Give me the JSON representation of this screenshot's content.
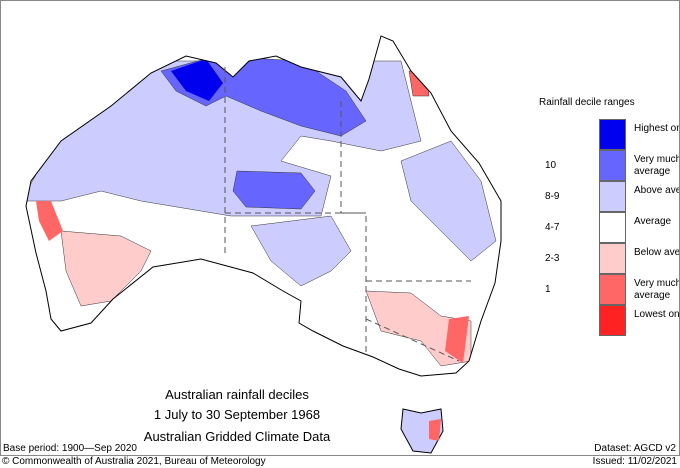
{
  "title_lines": [
    "Australian rainfall deciles",
    "1 July to 30 September 1968",
    "Australian Gridded Climate Data"
  ],
  "base_period": "Base period: 1900—Sep 2020",
  "dataset": "Dataset: AGCD v2",
  "copyright": "© Commonwealth of Australia 2021, Bureau of Meteorology",
  "issued": "Issued: 11/02/2021",
  "legend": {
    "title": "Rainfall decile ranges",
    "items": [
      {
        "label": "Highest on record",
        "decile": "",
        "color": "#0000ee"
      },
      {
        "label": "Very much above average",
        "decile": "10",
        "color": "#6666ff"
      },
      {
        "label": "Above average",
        "decile": "8-9",
        "color": "#ccccff"
      },
      {
        "label": "Average",
        "decile": "4-7",
        "color": "#ffffff"
      },
      {
        "label": "Below average",
        "decile": "2-3",
        "color": "#ffcccc"
      },
      {
        "label": "Very much below average",
        "decile": "1",
        "color": "#ff6666"
      },
      {
        "label": "Lowest on record",
        "decile": "",
        "color": "#ff2222"
      }
    ]
  }
}
